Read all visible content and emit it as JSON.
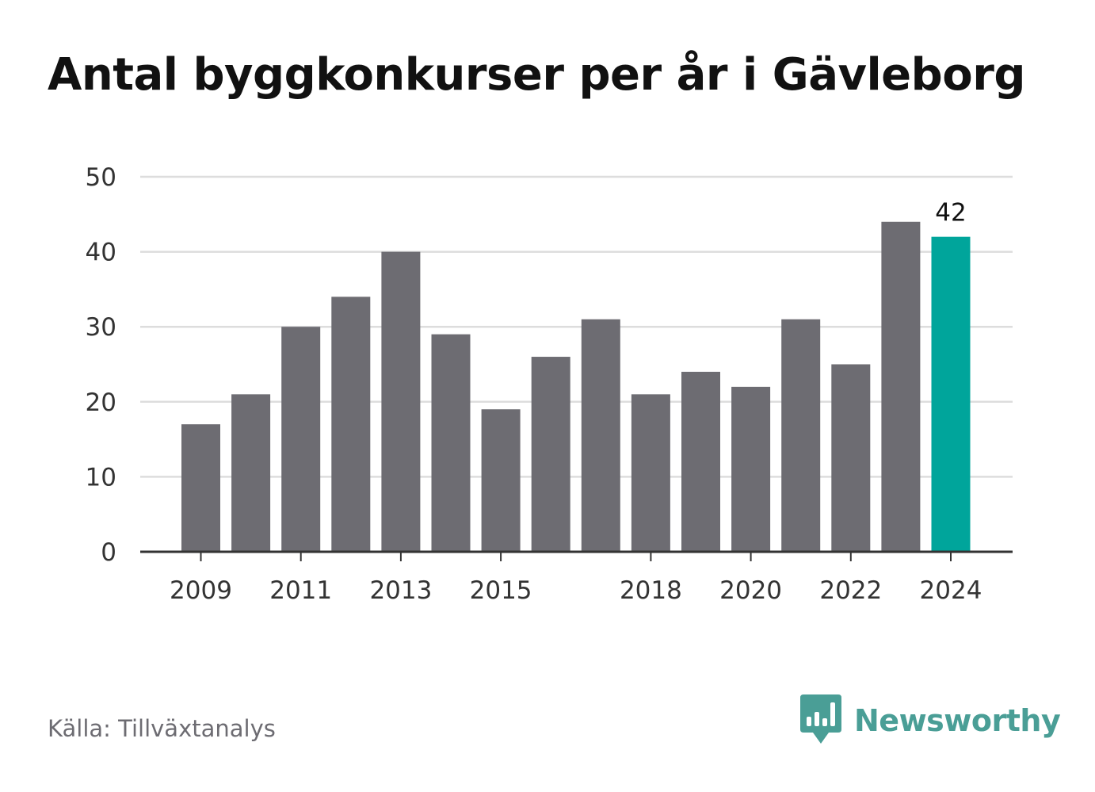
{
  "title": "Antal byggkonkurser per år i Gävleborg",
  "source": "Källa: Tillväxtanalys",
  "brand": {
    "name": "Newsworthy",
    "icon": "newsworthy-logo-icon"
  },
  "colors": {
    "bar": "#6d6c72",
    "highlight": "#00a59b",
    "grid": "#dddddd",
    "axis": "#333333",
    "text": "#111111",
    "tick_text": "#333333",
    "brand": "#4a9e96"
  },
  "chart_data": {
    "type": "bar",
    "categories": [
      "2009",
      "2010",
      "2011",
      "2012",
      "2013",
      "2014",
      "2015",
      "2016",
      "2017",
      "2018",
      "2019",
      "2020",
      "2021",
      "2022",
      "2023",
      "2024"
    ],
    "values": [
      17,
      21,
      30,
      34,
      40,
      29,
      19,
      26,
      31,
      21,
      24,
      22,
      31,
      25,
      44,
      42
    ],
    "highlight_index": 15,
    "data_labels": [
      {
        "index": 15,
        "text": "42"
      }
    ],
    "x_tick_labels": [
      "2009",
      "2011",
      "2013",
      "2015",
      "2018",
      "2020",
      "2022",
      "2024"
    ],
    "y_ticks": [
      0,
      10,
      20,
      30,
      40,
      50
    ],
    "ylim": [
      0,
      50
    ],
    "grid": true,
    "legend": "none"
  }
}
